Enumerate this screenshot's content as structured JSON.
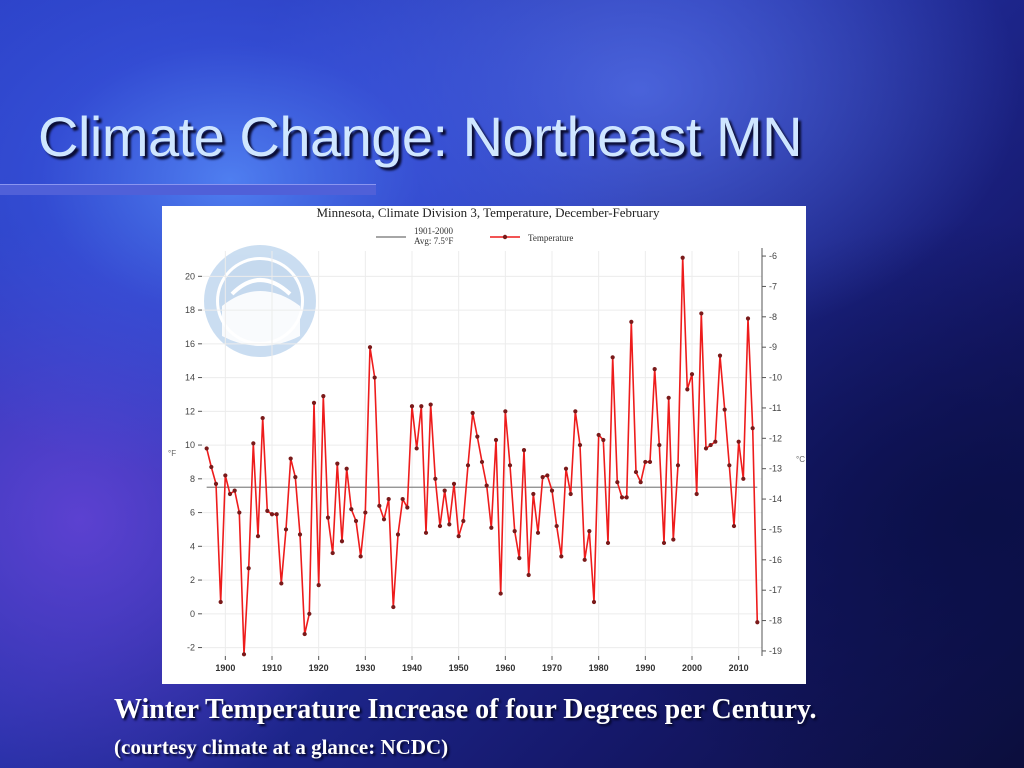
{
  "slide": {
    "title": "Climate Change: Northeast MN",
    "caption": "Winter Temperature Increase of four Degrees per Century.",
    "subcaption": "(courtesy climate at a glance: NCDC)"
  },
  "colors": {
    "series_line": "#ee1c1c",
    "series_marker": "#7a1a1a",
    "average_line": "#888888",
    "title_text": "#cfe6ff"
  },
  "chart_data": {
    "type": "line",
    "title": "Minnesota, Climate Division 3, Temperature, December-February",
    "legend": {
      "placement": "top",
      "average_label_line1": "1901-2000",
      "average_label_line2": "Avg: 7.5°F",
      "series_label": "Temperature"
    },
    "left_axis_unit": "°F",
    "right_axis_unit": "°C",
    "ylim": [
      -2.5,
      21.5
    ],
    "y_ticks": [
      -2,
      0,
      2,
      4,
      6,
      8,
      10,
      12,
      14,
      16,
      18,
      20
    ],
    "right_ticks": [
      -6,
      -7,
      -8,
      -9,
      -10,
      -11,
      -12,
      -13,
      -14,
      -15,
      -16,
      -17,
      -18,
      -19
    ],
    "xlim": [
      1895,
      2015
    ],
    "x_ticks": [
      1900,
      1910,
      1920,
      1930,
      1940,
      1950,
      1960,
      1970,
      1980,
      1990,
      2000,
      2010
    ],
    "average": 7.5,
    "series": [
      {
        "name": "Temperature",
        "x": [
          1896,
          1897,
          1898,
          1899,
          1900,
          1901,
          1902,
          1903,
          1904,
          1905,
          1906,
          1907,
          1908,
          1909,
          1910,
          1911,
          1912,
          1913,
          1914,
          1915,
          1916,
          1917,
          1918,
          1919,
          1920,
          1921,
          1922,
          1923,
          1924,
          1925,
          1926,
          1927,
          1928,
          1929,
          1930,
          1931,
          1932,
          1933,
          1934,
          1935,
          1936,
          1937,
          1938,
          1939,
          1940,
          1941,
          1942,
          1943,
          1944,
          1945,
          1946,
          1947,
          1948,
          1949,
          1950,
          1951,
          1952,
          1953,
          1954,
          1955,
          1956,
          1957,
          1958,
          1959,
          1960,
          1961,
          1962,
          1963,
          1964,
          1965,
          1966,
          1967,
          1968,
          1969,
          1970,
          1971,
          1972,
          1973,
          1974,
          1975,
          1976,
          1977,
          1978,
          1979,
          1980,
          1981,
          1982,
          1983,
          1984,
          1985,
          1986,
          1987,
          1988,
          1989,
          1990,
          1991,
          1992,
          1993,
          1994,
          1995,
          1996,
          1997,
          1998,
          1999,
          2000,
          2001,
          2002,
          2003,
          2004,
          2005,
          2006,
          2007,
          2008,
          2009,
          2010,
          2011,
          2012,
          2013,
          2014
        ],
        "values": [
          9.8,
          8.7,
          7.7,
          0.7,
          8.2,
          7.1,
          7.3,
          6.0,
          -2.4,
          2.7,
          10.1,
          4.6,
          11.6,
          6.1,
          5.9,
          5.9,
          1.8,
          5.0,
          9.2,
          8.1,
          4.7,
          -1.2,
          0.0,
          12.5,
          1.7,
          12.9,
          5.7,
          3.6,
          8.9,
          4.3,
          8.6,
          6.2,
          5.5,
          3.4,
          6.0,
          15.8,
          14.0,
          6.4,
          5.6,
          6.8,
          0.4,
          4.7,
          6.8,
          6.3,
          12.3,
          9.8,
          12.3,
          4.8,
          12.4,
          8.0,
          5.2,
          7.3,
          5.3,
          7.7,
          4.6,
          5.5,
          8.8,
          11.9,
          10.5,
          9.0,
          7.6,
          5.1,
          10.3,
          1.2,
          12.0,
          8.8,
          4.9,
          3.3,
          9.7,
          2.3,
          7.1,
          4.8,
          8.1,
          8.2,
          7.3,
          5.2,
          3.4,
          8.6,
          7.1,
          12.0,
          10.0,
          3.2,
          4.9,
          0.7,
          10.6,
          10.3,
          4.2,
          15.2,
          7.8,
          6.9,
          6.9,
          17.3,
          8.4,
          7.8,
          9.0,
          9.0,
          14.5,
          10.0,
          4.2,
          12.8,
          4.4,
          8.8,
          21.1,
          13.3,
          14.2,
          7.1,
          17.8,
          9.8,
          10.0,
          10.2,
          15.3,
          12.1,
          8.8,
          5.2,
          10.2,
          8.0,
          17.5,
          11.0,
          -0.5
        ]
      }
    ]
  }
}
